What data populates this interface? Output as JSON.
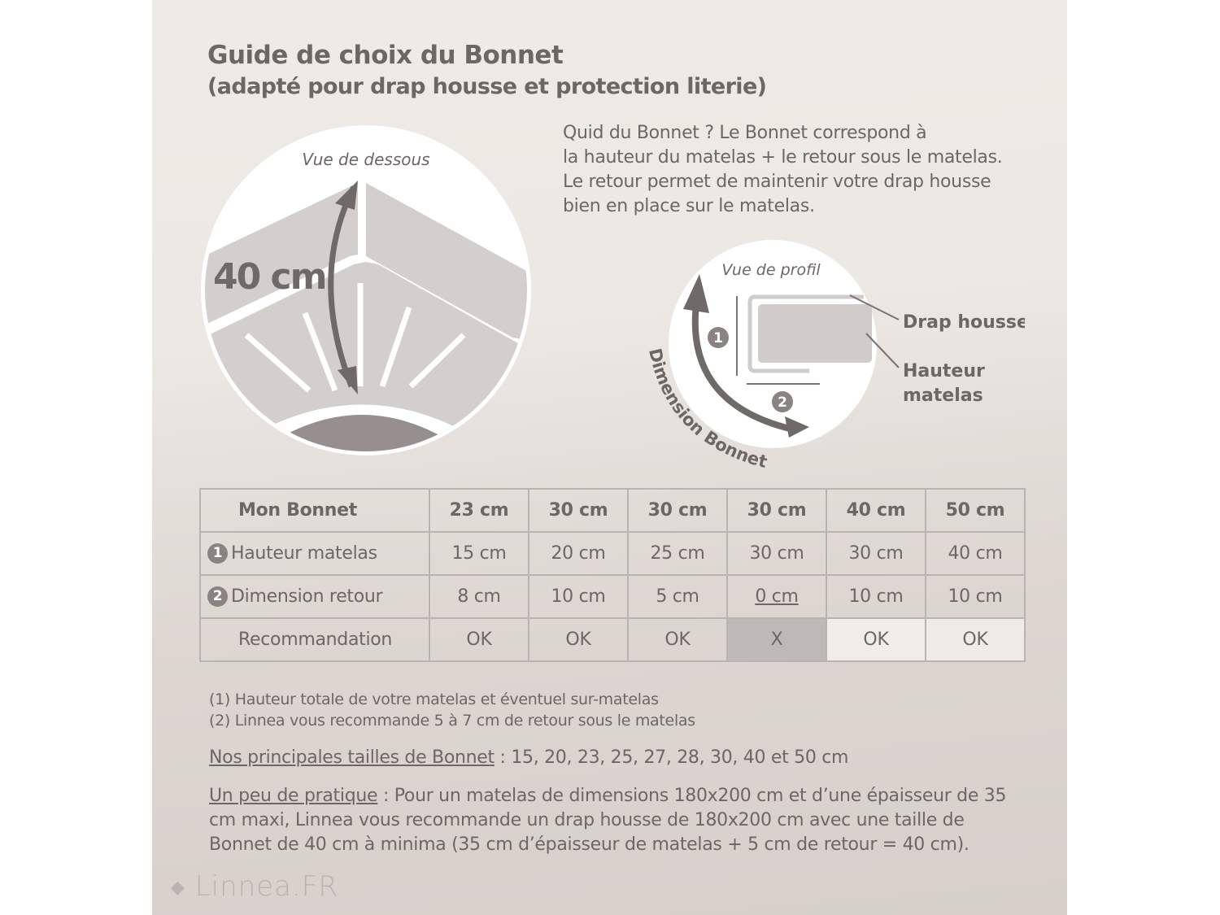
{
  "title": "Guide de choix du Bonnet",
  "subtitle": "(adapté pour drap housse et protection literie)",
  "intro": [
    "Quid du Bonnet ? Le Bonnet correspond à",
    "la hauteur du matelas + le retour sous le matelas.",
    "Le retour permet de maintenir votre drap housse",
    "bien en place sur le matelas."
  ],
  "diagram_under": {
    "caption": "Vue de dessous",
    "measure": "40 cm"
  },
  "diagram_profile": {
    "caption": "Vue de profil",
    "label_sheet": "Drap housse",
    "label_height": [
      "Hauteur",
      "matelas"
    ],
    "curve_label": "Dimension Bonnet",
    "marker1": "1",
    "marker2": "2"
  },
  "table": {
    "header": {
      "label": "Mon Bonnet",
      "values": [
        "23 cm",
        "30 cm",
        "30 cm",
        "30 cm",
        "40 cm",
        "50 cm"
      ]
    },
    "rows": [
      {
        "num": "1",
        "label": "Hauteur matelas",
        "values": [
          "15 cm",
          "20 cm",
          "25 cm",
          "30 cm",
          "30 cm",
          "40 cm"
        ]
      },
      {
        "num": "2",
        "label": "Dimension retour",
        "values": [
          "8 cm",
          "10 cm",
          "5 cm",
          "0 cm",
          "10 cm",
          "10 cm"
        ]
      },
      {
        "num": "",
        "label": "Recommandation",
        "values": [
          "OK",
          "OK",
          "OK",
          "X",
          "OK",
          "OK"
        ]
      }
    ],
    "highlight_color": "#bdb9b6"
  },
  "notes": [
    "(1) Hauteur totale de votre matelas et éventuel sur-matelas",
    "(2) Linnea vous recommande 5 à 7 cm de retour sous le matelas"
  ],
  "sizes": {
    "label": "Nos principales tailles de Bonnet",
    "text": " : 15, 20, 23, 25, 27, 28, 30, 40 et 50 cm"
  },
  "practice": {
    "label": "Un peu de pratique",
    "text": " : Pour un matelas de dimensions 180x200 cm et d’une épaisseur de 35 cm maxi, Linnea vous recommande un drap housse de 180x200 cm avec une taille de Bonnet de 40 cm à minima (35 cm d’épaisseur de matelas + 5 cm de retour = 40 cm)."
  },
  "logo": "Linnea.FR",
  "colors": {
    "background": "#ece8e3",
    "text": "#6d6665",
    "diagram_fill": "#d3cfcc",
    "arrow": "#6f6968"
  }
}
